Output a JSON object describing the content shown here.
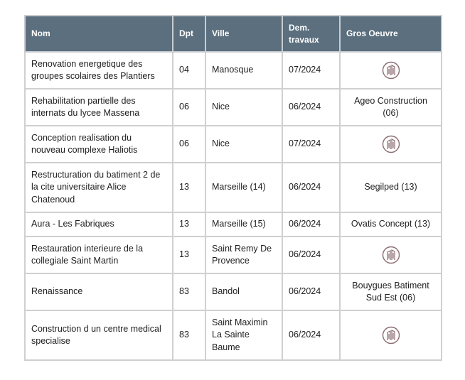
{
  "table": {
    "headers": [
      "Nom",
      "Dpt",
      "Ville",
      "Dem. travaux",
      "Gros Oeuvre"
    ],
    "rows": [
      {
        "nom": "Renovation energetique des groupes scolaires des Plantiers",
        "dpt": "04",
        "ville": "Manosque",
        "dem": "07/2024",
        "gros": "",
        "logo": "building-logo-icon"
      },
      {
        "nom": "Rehabilitation partielle des internats du lycee Massena",
        "dpt": "06",
        "ville": "Nice",
        "dem": "06/2024",
        "gros": "Ageo Construction (06)",
        "logo": ""
      },
      {
        "nom": "Conception realisation du nouveau complexe Haliotis",
        "dpt": "06",
        "ville": "Nice",
        "dem": "07/2024",
        "gros": "",
        "logo": "building-logo-icon"
      },
      {
        "nom": "Restructuration du batiment 2 de la cite universitaire Alice Chatenoud",
        "dpt": "13",
        "ville": "Marseille (14)",
        "dem": "06/2024",
        "gros": "Segilped (13)",
        "logo": ""
      },
      {
        "nom": "Aura - Les Fabriques",
        "dpt": "13",
        "ville": "Marseille (15)",
        "dem": "06/2024",
        "gros": "Ovatis Concept (13)",
        "logo": ""
      },
      {
        "nom": "Restauration interieure de la collegiale Saint Martin",
        "dpt": "13",
        "ville": "Saint Remy De Provence",
        "dem": "06/2024",
        "gros": "",
        "logo": "building-logo-icon"
      },
      {
        "nom": "Renaissance",
        "dpt": "83",
        "ville": "Bandol",
        "dem": "06/2024",
        "gros": "Bouygues Batiment Sud Est (06)",
        "logo": ""
      },
      {
        "nom": "Construction d un centre medical specialise",
        "dpt": "83",
        "ville": "Saint Maximin La Sainte Baume",
        "dem": "06/2024",
        "gros": "",
        "logo": "building-logo-icon"
      }
    ]
  },
  "colors": {
    "header_bg": "#5b6f7e",
    "grid": "#d0d0d0",
    "logo": "#8a6a72"
  }
}
